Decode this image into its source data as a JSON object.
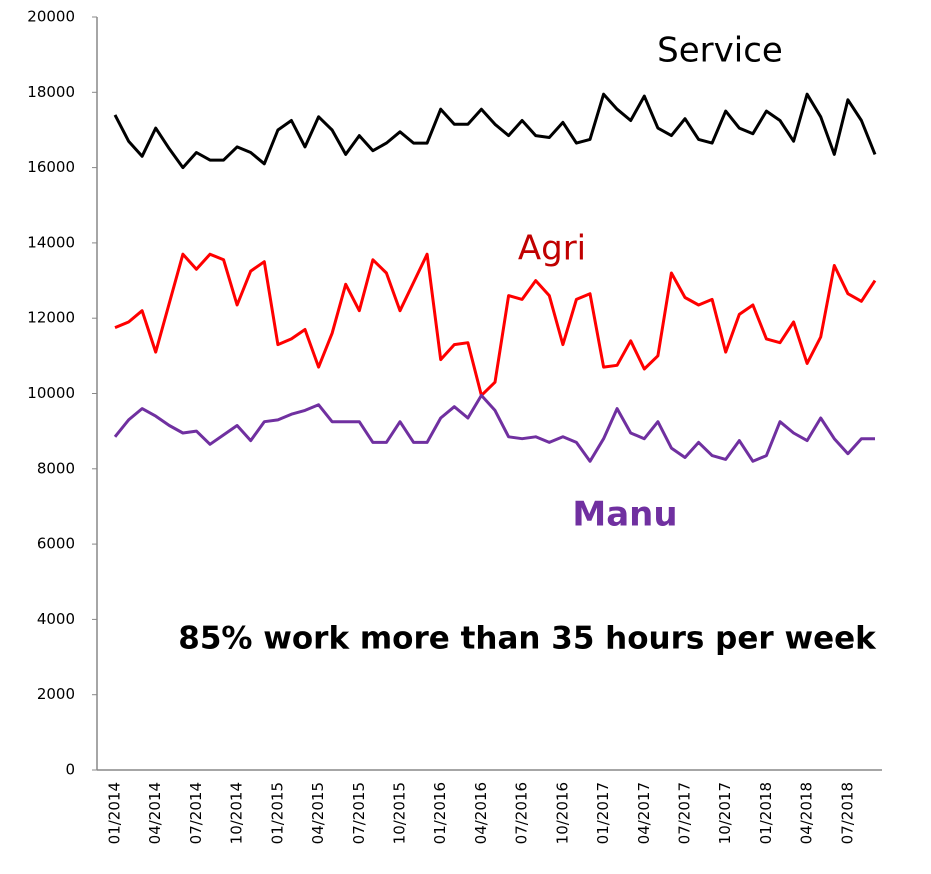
{
  "chart_data": {
    "type": "line",
    "categories": [
      "01/2014",
      null,
      null,
      "04/2014",
      null,
      null,
      "07/2014",
      null,
      null,
      "10/2014",
      null,
      null,
      "01/2015",
      null,
      null,
      "04/2015",
      null,
      null,
      "07/2015",
      null,
      null,
      "10/2015",
      null,
      null,
      "01/2016",
      null,
      null,
      "04/2016",
      null,
      null,
      "07/2016",
      null,
      null,
      "10/2016",
      null,
      null,
      "01/2017",
      null,
      null,
      "04/2017",
      null,
      null,
      "07/2017",
      null,
      null,
      "10/2017",
      null,
      null,
      "01/2018",
      null,
      null,
      "04/2018",
      null,
      null,
      "07/2018",
      null,
      null
    ],
    "series": [
      {
        "name": "Service",
        "color": "#000000",
        "values": [
          17400,
          16700,
          16300,
          17050,
          16500,
          16000,
          16400,
          16200,
          16200,
          16550,
          16400,
          16100,
          17000,
          17250,
          16550,
          17350,
          17000,
          16350,
          16850,
          16450,
          16650,
          16950,
          16650,
          16650,
          17550,
          17150,
          17150,
          17550,
          17150,
          16850,
          17250,
          16850,
          16800,
          17200,
          16650,
          16750,
          17950,
          17550,
          17250,
          17900,
          17050,
          16850,
          17300,
          16750,
          16650,
          17500,
          17050,
          16900,
          17500,
          17250,
          16700,
          17950,
          17350,
          16350,
          17800,
          17250,
          16350
        ]
      },
      {
        "name": "Agri",
        "color": "#ff0000",
        "label_color": "#c00000",
        "values": [
          11750,
          11900,
          12200,
          11100,
          12400,
          13700,
          13300,
          13700,
          13550,
          12350,
          13250,
          13500,
          11300,
          11450,
          11700,
          10700,
          11600,
          12900,
          12200,
          13550,
          13200,
          12200,
          12950,
          13700,
          10900,
          11300,
          11350,
          9950,
          10300,
          12600,
          12500,
          13000,
          12600,
          11300,
          12500,
          12650,
          10700,
          10750,
          11400,
          10650,
          11000,
          13200,
          12550,
          12350,
          12500,
          11100,
          12100,
          12350,
          11450,
          11350,
          11900,
          10800,
          11500,
          13400,
          12650,
          12450,
          13000
        ]
      },
      {
        "name": "Manu",
        "color": "#7030a0",
        "values": [
          8850,
          9300,
          9600,
          9400,
          9150,
          8950,
          9000,
          8650,
          8900,
          9150,
          8750,
          9250,
          9300,
          9450,
          9550,
          9700,
          9250,
          9250,
          9250,
          8700,
          8700,
          9250,
          8700,
          8700,
          9350,
          9650,
          9350,
          9950,
          9550,
          8850,
          8800,
          8850,
          8700,
          8850,
          8700,
          8200,
          8800,
          9600,
          8950,
          8800,
          9250,
          8550,
          8300,
          8700,
          8350,
          8250,
          8750,
          8200,
          8350,
          9250,
          8950,
          8750,
          9350,
          8800,
          8400,
          8800,
          8800
        ]
      }
    ],
    "annotation": "85% work more than 35 hours per week",
    "ylim": [
      0,
      20000
    ],
    "yticks": [
      0,
      2000,
      4000,
      6000,
      8000,
      10000,
      12000,
      14000,
      16000,
      18000,
      20000
    ],
    "grid": false
  }
}
